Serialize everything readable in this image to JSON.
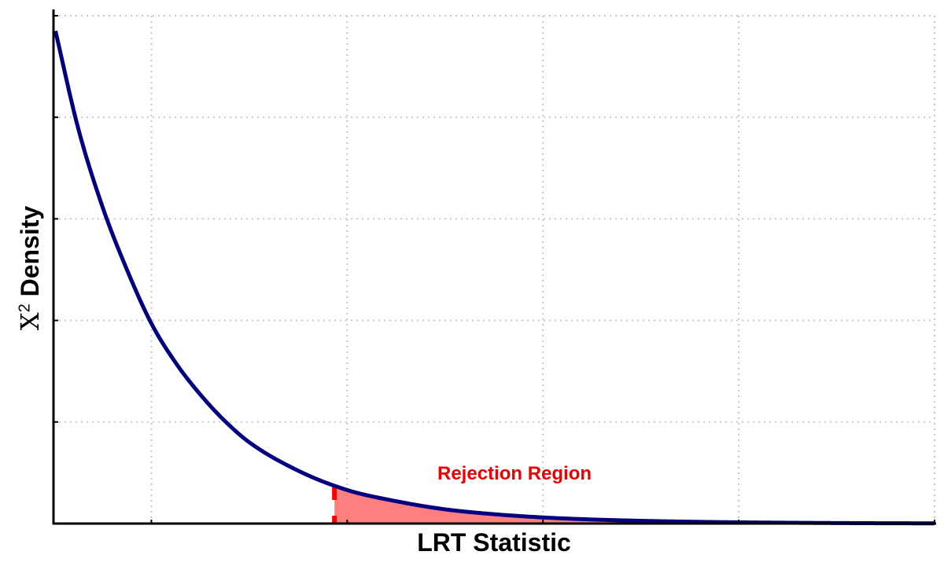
{
  "chart_data": {
    "type": "area",
    "x_label": "LRT Statistic",
    "y_label": {
      "symbol": "X",
      "superscript": "2",
      "text": "Density"
    },
    "x_range": [
      0,
      9
    ],
    "y_range": [
      0,
      0.5
    ],
    "grid": true,
    "series": [
      {
        "x": [
          0.02,
          0.25,
          0.5,
          0.75,
          1,
          1.25,
          1.5,
          1.75,
          2,
          2.5,
          3,
          3.5,
          4,
          4.5,
          5,
          5.5,
          6,
          6.5,
          7,
          7.5,
          8,
          8.5,
          9
        ],
        "y": [
          0.485,
          0.39,
          0.312,
          0.25,
          0.197,
          0.158,
          0.127,
          0.101,
          0.08,
          0.052,
          0.033,
          0.022,
          0.014,
          0.0092,
          0.006,
          0.004,
          0.0027,
          0.0018,
          0.0012,
          0.0008,
          0.0005,
          0.0003,
          0.0002
        ],
        "color": "#000080"
      }
    ],
    "critical_value": 2.87,
    "shaded_region": {
      "from": 2.87,
      "to": 9,
      "color": "#ff7f7f"
    },
    "annotation": {
      "text": "Rejection Region",
      "color": "#ee0000"
    }
  }
}
